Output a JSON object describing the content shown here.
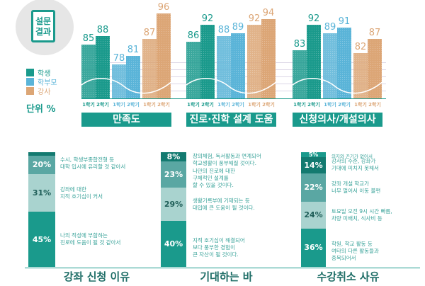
{
  "badge": {
    "line1": "설문",
    "line2": "결과"
  },
  "legend": [
    {
      "name": "학생",
      "color": "#1a9a8c"
    },
    {
      "name": "학부모",
      "color": "#5ab4d8"
    },
    {
      "name": "강사",
      "color": "#dca676"
    }
  ],
  "unit_label": "단위 %",
  "chart_data": {
    "type": "bar",
    "groups": [
      "만족도",
      "진로·진학 설계 도움",
      "신청의사/개설의사"
    ],
    "sub_categories": [
      "1학기",
      "2학기"
    ],
    "series": [
      {
        "name": "학생",
        "color": "#1a9a8c",
        "values": [
          [
            85,
            88
          ],
          [
            86,
            92
          ],
          [
            83,
            92
          ]
        ]
      },
      {
        "name": "학부모",
        "color": "#5ab4d8",
        "values": [
          [
            78,
            81
          ],
          [
            88,
            89
          ],
          [
            89,
            91
          ]
        ]
      },
      {
        "name": "강사",
        "color": "#dca676",
        "values": [
          [
            87,
            96
          ],
          [
            92,
            94
          ],
          [
            82,
            87
          ]
        ]
      }
    ]
  },
  "breakdowns": [
    {
      "title": "강좌 신청 이유",
      "segments": [
        {
          "pct": "",
          "text": ""
        },
        {
          "pct": "20%",
          "text": "수시, 학생부종합전형 등\n대학 입시에 유리할 것 같아서"
        },
        {
          "pct": "31%",
          "text": "강좌에 대한\n지적 호기심이 커서"
        },
        {
          "pct": "45%",
          "text": "나의 적성에 부합하는\n진로에 도움이 될 것 같아서"
        }
      ]
    },
    {
      "title": "기대하는 바",
      "segments": [
        {
          "pct": "8%",
          "text": "창의체험, 독서활동과 연계되어\n학교생활이 풍부해질 것이다."
        },
        {
          "pct": "23%",
          "text": "나만의 진로에 대한\n구체적인 설계를\n할 수 있을 것이다."
        },
        {
          "pct": "29%",
          "text": "생활기록부에 기재되는 등\n대입에 큰 도움이 될 것이다."
        },
        {
          "pct": "40%",
          "text": "지적 호기심이 해결되어\n보다 풍부한 경험이\n큰 자산이 될 것이다."
        }
      ]
    },
    {
      "title": "수강취소 사유",
      "segments": [
        {
          "pct": "5%",
          "text": "의지와 끈기가 없어서"
        },
        {
          "pct": "14%",
          "text": "강사의 수준, 강좌가\n기대에 미치지 못해서"
        },
        {
          "pct": "22%",
          "text": "강좌 개설 학교가\n너무 멀어서 이동 불편"
        },
        {
          "pct": "24%",
          "text": "토요일 오전 9시 시간 빠름,\n차량 미배치, 식사비 등"
        },
        {
          "pct": "36%",
          "text": "학원, 학교 활동 등\n여타의 다른 활동들과\n중복되어서"
        }
      ]
    }
  ]
}
